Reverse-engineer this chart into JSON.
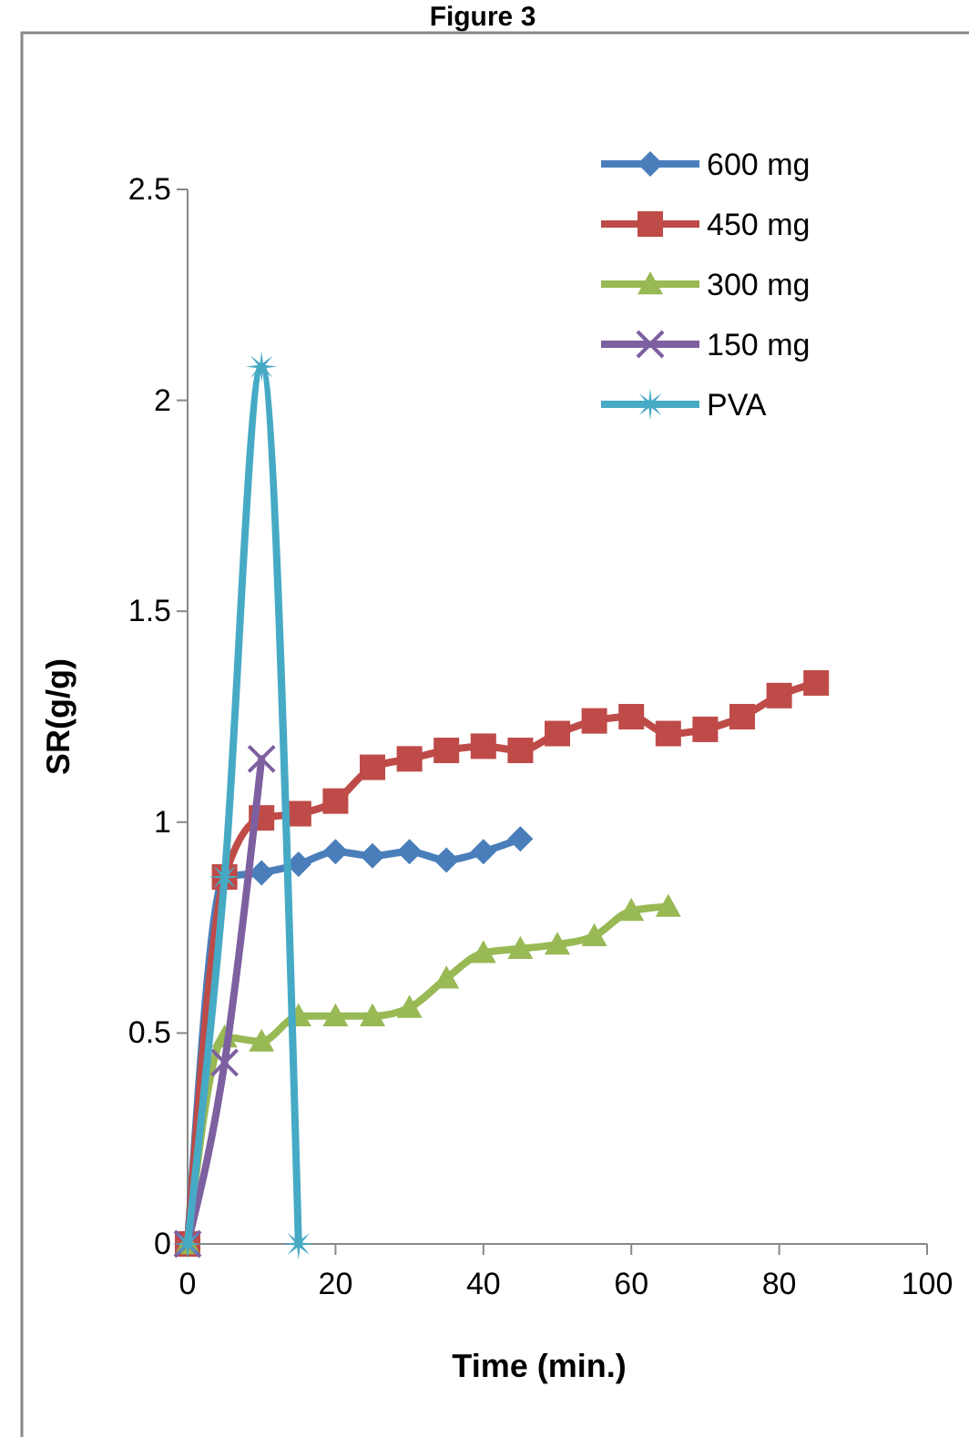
{
  "chart_data": {
    "type": "line",
    "title": "Figure 3",
    "xlabel": "Time (min.)",
    "ylabel": "SR(g/g)",
    "xlim": [
      0,
      100
    ],
    "xticks": [
      0,
      20,
      40,
      60,
      80,
      100
    ],
    "ylim": [
      0,
      2.5
    ],
    "yticks": [
      0,
      0.5,
      1,
      1.5,
      2,
      2.5
    ],
    "grid": false,
    "legend": "top right",
    "series": [
      {
        "name": "600 mg",
        "color": "#4a7ebb",
        "marker": "diamond",
        "x": [
          0,
          5,
          10,
          15,
          20,
          25,
          30,
          35,
          40,
          45
        ],
        "values": [
          0,
          0.87,
          0.88,
          0.9,
          0.93,
          0.92,
          0.93,
          0.91,
          0.93,
          0.96
        ]
      },
      {
        "name": "450 mg",
        "color": "#be4b48",
        "marker": "square",
        "x": [
          0,
          5,
          10,
          15,
          20,
          25,
          30,
          35,
          40,
          45,
          50,
          55,
          60,
          65,
          70,
          75,
          80,
          85
        ],
        "values": [
          0,
          0.87,
          1.01,
          1.02,
          1.05,
          1.13,
          1.15,
          1.17,
          1.18,
          1.17,
          1.21,
          1.24,
          1.25,
          1.21,
          1.22,
          1.25,
          1.3,
          1.33
        ]
      },
      {
        "name": "300 mg",
        "color": "#98b954",
        "marker": "triangle",
        "x": [
          0,
          5,
          10,
          15,
          20,
          25,
          30,
          35,
          40,
          45,
          50,
          55,
          60,
          65
        ],
        "values": [
          0,
          0.49,
          0.48,
          0.54,
          0.54,
          0.54,
          0.56,
          0.63,
          0.69,
          0.7,
          0.71,
          0.73,
          0.79,
          0.8
        ]
      },
      {
        "name": "150 mg",
        "color": "#7d60a0",
        "marker": "cross",
        "x": [
          0,
          5,
          10
        ],
        "values": [
          0,
          0.43,
          1.15
        ]
      },
      {
        "name": "PVA",
        "color": "#46aac5",
        "marker": "star",
        "x": [
          0,
          5,
          10,
          15
        ],
        "values": [
          0,
          0.87,
          2.08,
          0
        ]
      }
    ]
  }
}
